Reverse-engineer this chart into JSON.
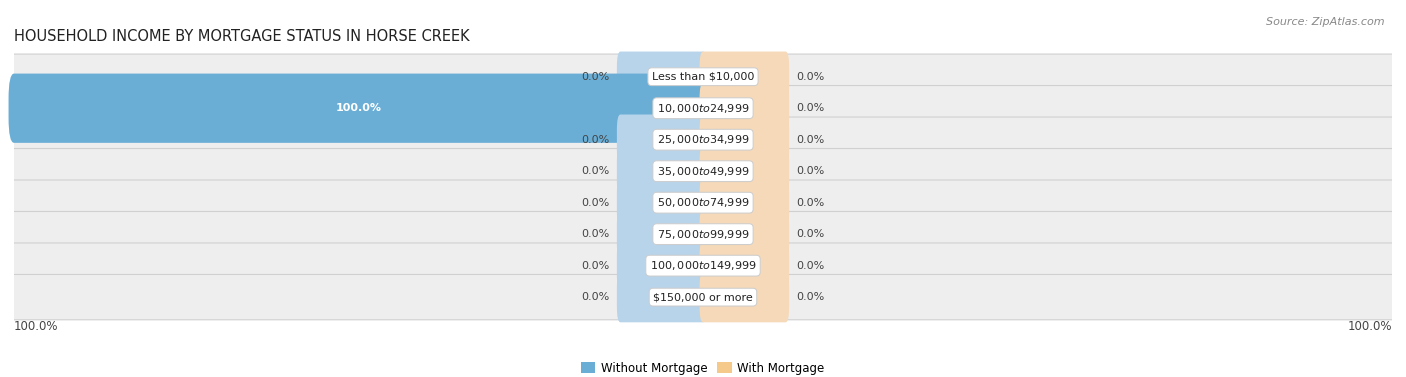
{
  "title": "HOUSEHOLD INCOME BY MORTGAGE STATUS IN HORSE CREEK",
  "source": "Source: ZipAtlas.com",
  "categories": [
    "Less than $10,000",
    "$10,000 to $24,999",
    "$25,000 to $34,999",
    "$35,000 to $49,999",
    "$50,000 to $74,999",
    "$75,000 to $99,999",
    "$100,000 to $149,999",
    "$150,000 or more"
  ],
  "without_mortgage": [
    0.0,
    100.0,
    0.0,
    0.0,
    0.0,
    0.0,
    0.0,
    0.0
  ],
  "with_mortgage": [
    0.0,
    0.0,
    0.0,
    0.0,
    0.0,
    0.0,
    0.0,
    0.0
  ],
  "without_mortgage_color": "#6aaed6",
  "with_mortgage_color": "#f5c98a",
  "without_mortgage_label": "Without Mortgage",
  "with_mortgage_label": "With Mortgage",
  "max_val": 100.0,
  "left_label_val": "100.0%",
  "right_label_val": "100.0%",
  "title_fontsize": 10.5,
  "source_fontsize": 8,
  "label_fontsize": 8,
  "category_fontsize": 8,
  "background_color": "#ffffff",
  "row_bg_color": "#eeeeee",
  "row_border_color": "#d0d0d0",
  "cat_box_color": "#ffffff",
  "cat_box_border": "#cccccc",
  "zero_bar_width": 12.0,
  "zero_bar_color_blue": "#b8d4ea",
  "zero_bar_color_orange": "#f5d9b8"
}
